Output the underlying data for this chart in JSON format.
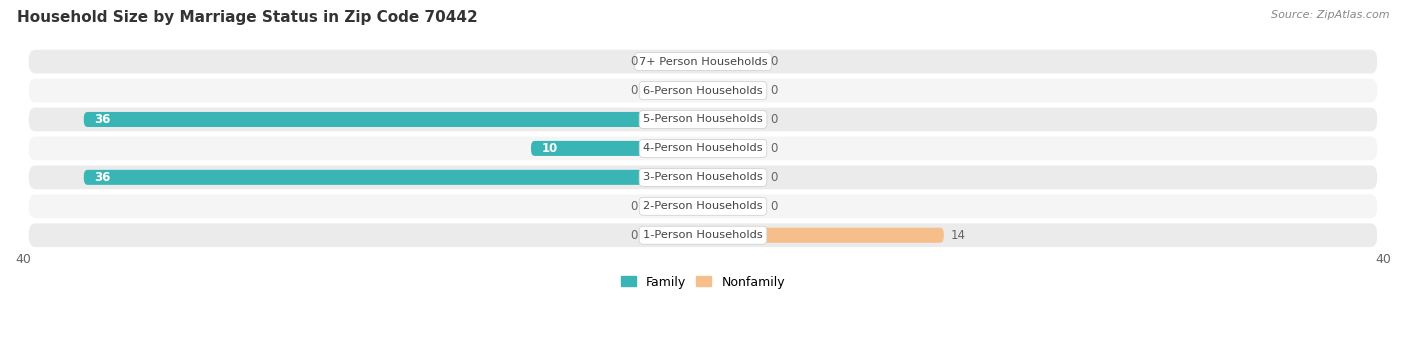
{
  "title": "Household Size by Marriage Status in Zip Code 70442",
  "source": "Source: ZipAtlas.com",
  "categories": [
    "7+ Person Households",
    "6-Person Households",
    "5-Person Households",
    "4-Person Households",
    "3-Person Households",
    "2-Person Households",
    "1-Person Households"
  ],
  "family_values": [
    0,
    0,
    36,
    10,
    36,
    0,
    0
  ],
  "nonfamily_values": [
    0,
    0,
    0,
    0,
    0,
    0,
    14
  ],
  "family_color_dark": "#3ab5b5",
  "family_color_light": "#7ecece",
  "nonfamily_color": "#f5be8a",
  "xlim": 40,
  "bar_height": 0.52,
  "row_bg_even": "#ebebeb",
  "row_bg_odd": "#f5f5f5",
  "label_color": "#444444",
  "title_color": "#333333",
  "source_color": "#888888",
  "axis_tick_color": "#666666"
}
